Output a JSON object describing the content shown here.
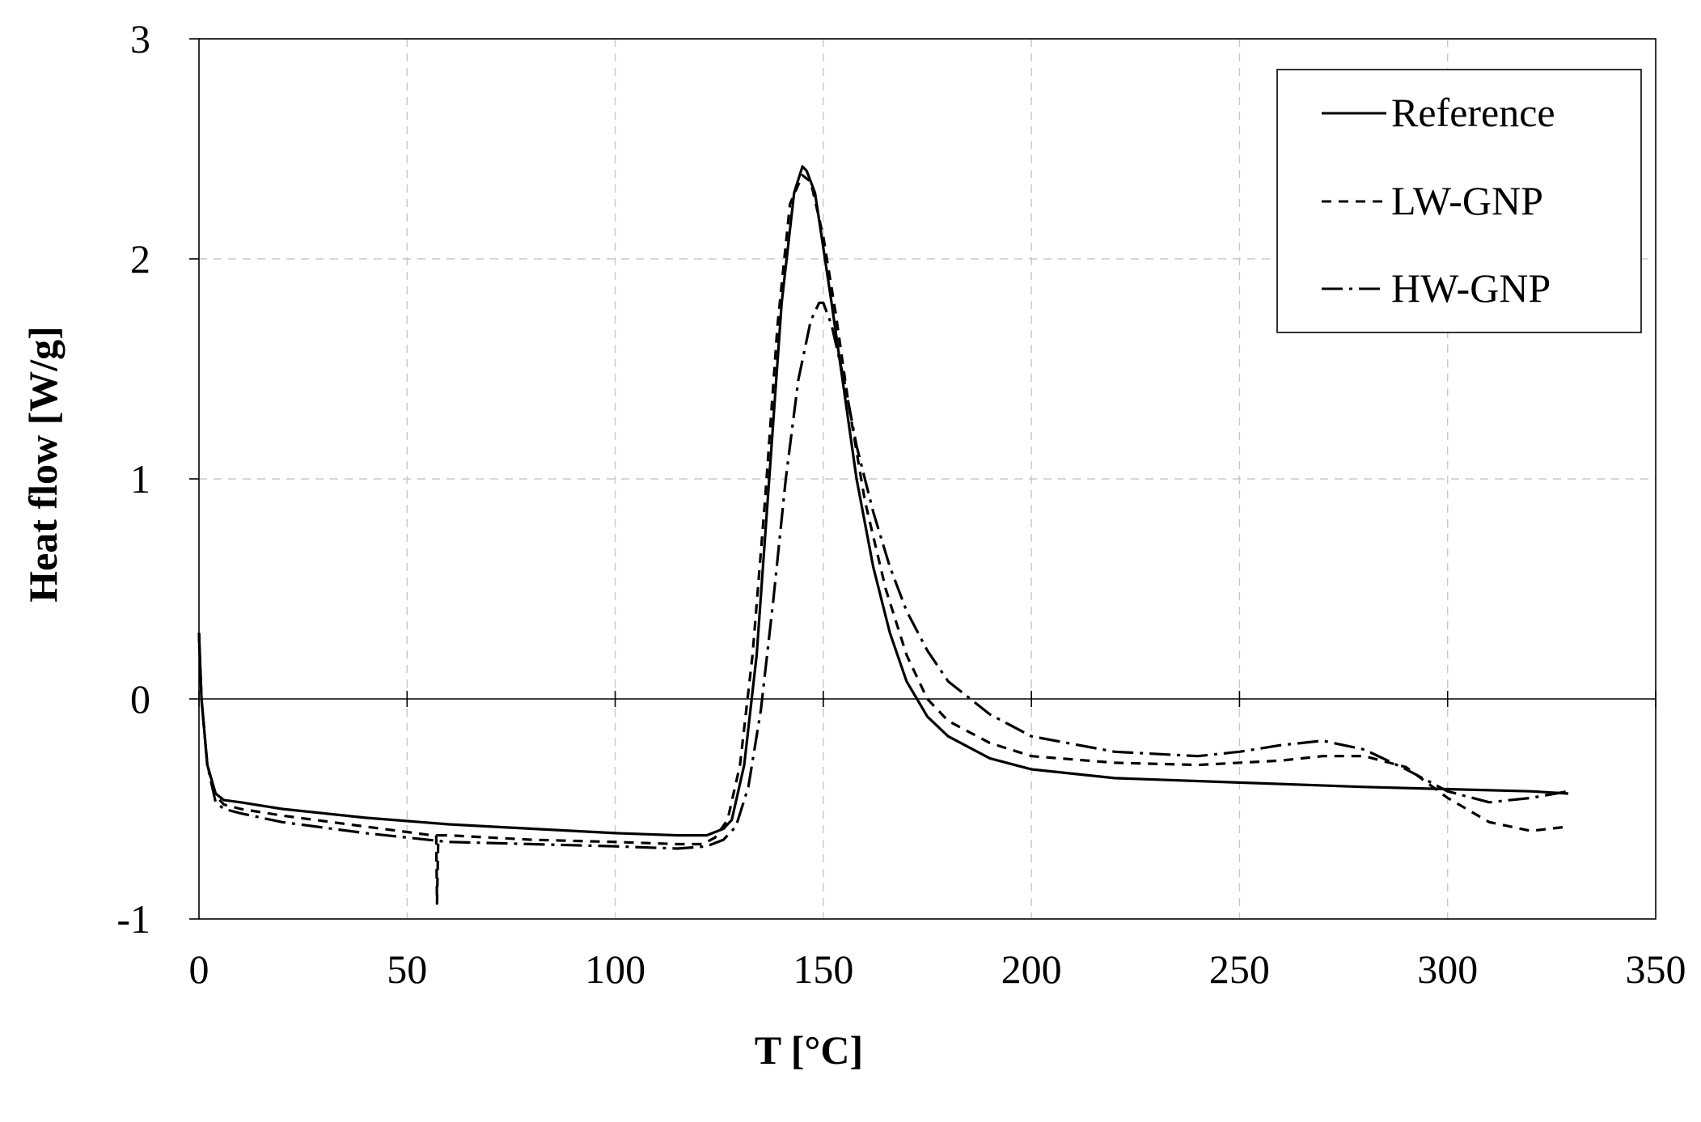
{
  "chart_data": {
    "type": "line",
    "title": "",
    "xlabel": "T [°C]",
    "ylabel": "Heat flow [W/g]",
    "xlim": [
      0,
      350
    ],
    "ylim": [
      -1,
      3
    ],
    "grid": true,
    "legend_position": "top-right",
    "x_ticks": [
      0,
      50,
      100,
      150,
      200,
      250,
      300,
      350
    ],
    "y_ticks": [
      -1,
      0,
      1,
      2,
      3
    ],
    "x_tick_labels": [
      "0",
      "50",
      "100",
      "150",
      "200",
      "250",
      "300",
      "350"
    ],
    "y_tick_labels": [
      "-1",
      "0",
      "1",
      "2",
      "3"
    ],
    "series": [
      {
        "name": "Reference",
        "style": "solid",
        "x": [
          0,
          0.6,
          2,
          4,
          6,
          10,
          20,
          40,
          60,
          80,
          100,
          115,
          122,
          126,
          128,
          131,
          134,
          137,
          140,
          143,
          145,
          146,
          148,
          150,
          152,
          155,
          158,
          162,
          166,
          170,
          175,
          180,
          190,
          200,
          220,
          250,
          280,
          300,
          320,
          329
        ],
        "y": [
          0.3,
          0.0,
          -0.3,
          -0.43,
          -0.46,
          -0.47,
          -0.5,
          -0.54,
          -0.57,
          -0.59,
          -0.61,
          -0.62,
          -0.62,
          -0.59,
          -0.55,
          -0.3,
          0.2,
          1.0,
          1.8,
          2.3,
          2.42,
          2.4,
          2.3,
          2.05,
          1.8,
          1.4,
          1.0,
          0.6,
          0.3,
          0.08,
          -0.08,
          -0.17,
          -0.27,
          -0.32,
          -0.36,
          -0.38,
          -0.4,
          -0.41,
          -0.42,
          -0.43
        ]
      },
      {
        "name": "LW-GNP",
        "style": "dash",
        "x": [
          0,
          0.6,
          2,
          4,
          6,
          10,
          20,
          40,
          56,
          57,
          57.2,
          57.5,
          58,
          60,
          80,
          100,
          115,
          121,
          124,
          127,
          130,
          133,
          136,
          139,
          142,
          145,
          147,
          150,
          153,
          156,
          160,
          165,
          170,
          175,
          180,
          190,
          200,
          220,
          240,
          260,
          270,
          280,
          290,
          300,
          310,
          320,
          329
        ],
        "y": [
          0.3,
          0.0,
          -0.3,
          -0.44,
          -0.48,
          -0.5,
          -0.53,
          -0.58,
          -0.62,
          -0.62,
          -0.93,
          -0.62,
          -0.62,
          -0.62,
          -0.64,
          -0.65,
          -0.66,
          -0.66,
          -0.63,
          -0.55,
          -0.3,
          0.2,
          0.9,
          1.7,
          2.25,
          2.38,
          2.35,
          2.1,
          1.75,
          1.35,
          0.9,
          0.5,
          0.2,
          0.0,
          -0.1,
          -0.2,
          -0.26,
          -0.29,
          -0.3,
          -0.28,
          -0.26,
          -0.26,
          -0.31,
          -0.45,
          -0.56,
          -0.6,
          -0.58
        ]
      },
      {
        "name": "HW-GNP",
        "style": "dashdot",
        "x": [
          0,
          0.6,
          2,
          4,
          6,
          10,
          20,
          40,
          60,
          80,
          100,
          115,
          122,
          126,
          129,
          132,
          135,
          138,
          141,
          144,
          147,
          149,
          150,
          152,
          155,
          158,
          162,
          166,
          170,
          175,
          180,
          190,
          200,
          220,
          240,
          250,
          260,
          270,
          280,
          290,
          300,
          310,
          320,
          329
        ],
        "y": [
          0.3,
          0.0,
          -0.3,
          -0.47,
          -0.5,
          -0.52,
          -0.56,
          -0.61,
          -0.65,
          -0.66,
          -0.67,
          -0.68,
          -0.67,
          -0.64,
          -0.58,
          -0.4,
          -0.05,
          0.45,
          1.0,
          1.45,
          1.72,
          1.8,
          1.8,
          1.7,
          1.45,
          1.15,
          0.85,
          0.6,
          0.4,
          0.22,
          0.08,
          -0.07,
          -0.17,
          -0.24,
          -0.26,
          -0.24,
          -0.21,
          -0.19,
          -0.23,
          -0.32,
          -0.42,
          -0.47,
          -0.45,
          -0.42
        ]
      }
    ]
  }
}
